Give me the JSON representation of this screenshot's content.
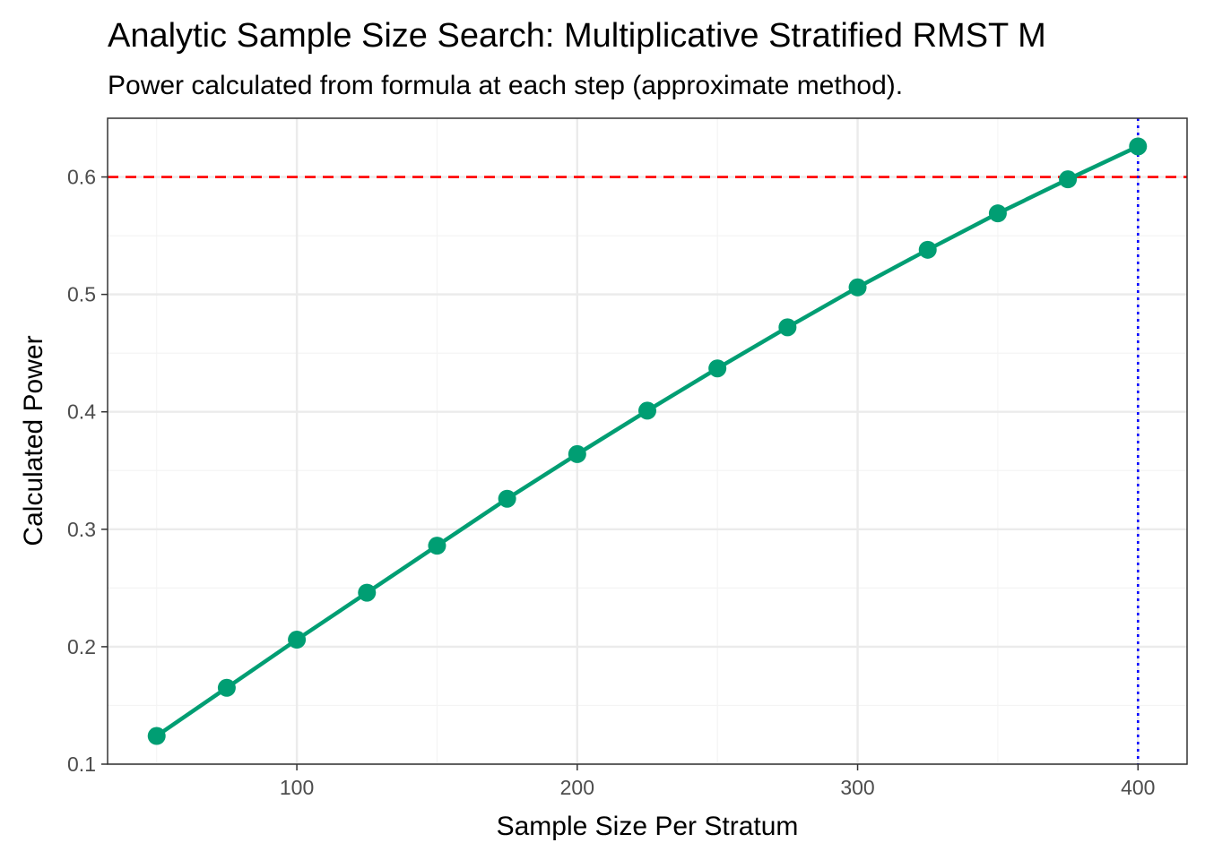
{
  "chart_data": {
    "type": "line",
    "title": "Analytic Sample Size Search: Multiplicative Stratified RMST M",
    "subtitle": "Power calculated from formula at each step (approximate method).",
    "xlabel": "Sample Size Per Stratum",
    "ylabel": "Calculated Power",
    "xlim": [
      32.5,
      417.5
    ],
    "ylim": [
      0.1,
      0.65
    ],
    "x_ticks": [
      100,
      200,
      300,
      400
    ],
    "y_ticks": [
      0.1,
      0.2,
      0.3,
      0.4,
      0.5,
      0.6
    ],
    "grid": true,
    "series": [
      {
        "x": [
          50,
          75,
          100,
          125,
          150,
          175,
          200,
          225,
          250,
          275,
          300,
          325,
          350,
          375,
          400
        ],
        "values": [
          0.124,
          0.165,
          0.206,
          0.246,
          0.286,
          0.326,
          0.364,
          0.401,
          0.437,
          0.472,
          0.506,
          0.538,
          0.569,
          0.598,
          0.626
        ]
      }
    ],
    "target_power": 0.6,
    "selected_n": 400,
    "colors": {
      "line": "#009E73",
      "target_line": "#ff0000",
      "selected_line": "#0000ff",
      "grid_major": "#ebebeb",
      "grid_minor": "#f4f4f4",
      "panel_border": "#333333"
    }
  }
}
